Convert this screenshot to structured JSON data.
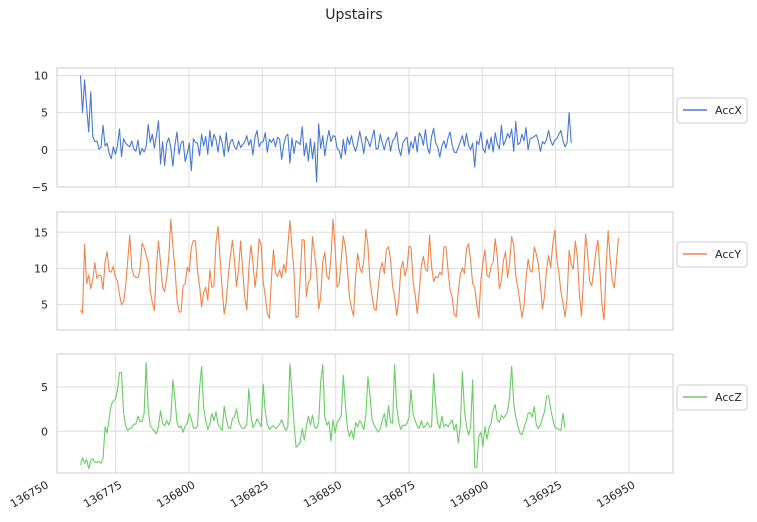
{
  "chart_data": {
    "type": "line",
    "title": "Upstairs",
    "x": {
      "start": 136763,
      "step": 0.7,
      "xlim": [
        136755,
        136965
      ],
      "ticks": [
        136750,
        136775,
        136800,
        136825,
        136850,
        136875,
        136900,
        136925,
        136950
      ],
      "tick_labels": [
        "136750",
        "136775",
        "136800",
        "136825",
        "136850",
        "136875",
        "136900",
        "136925",
        "136950"
      ]
    },
    "panels": [
      {
        "name": "AccX",
        "color": "#4878d0",
        "ylim": [
          -5,
          11
        ],
        "yticks": [
          -5,
          0,
          5,
          10
        ],
        "ytick_labels": [
          "−5",
          "0",
          "5",
          "10"
        ],
        "legend": "AccX",
        "values": [
          10.0,
          5.0,
          9.4,
          5.8,
          2.4,
          7.8,
          1.8,
          1.1,
          1.2,
          0.1,
          0.3,
          3.3,
          0.5,
          0.9,
          -0.5,
          -1.2,
          0.4,
          -0.6,
          0.5,
          2.8,
          -0.9,
          1.5,
          0.9,
          0.6,
          0.4,
          1.2,
          0.1,
          -0.2,
          1.3,
          -0.7,
          0.2,
          -0.3,
          0.4,
          3.4,
          1.0,
          2.1,
          0.2,
          1.9,
          3.9,
          -1.9,
          1.1,
          -2.1,
          0.9,
          1.6,
          0.3,
          -2.2,
          0.6,
          2.4,
          -0.6,
          0.9,
          1.2,
          -1.6,
          -0.5,
          0.9,
          -2.8,
          1.5,
          1.0,
          0.9,
          -0.8,
          2.1,
          0.5,
          1.8,
          -0.6,
          2.6,
          0.4,
          2.1,
          1.4,
          -0.3,
          1.9,
          1.0,
          -0.9,
          2.3,
          -0.3,
          1.1,
          1.4,
          0.4,
          0.1,
          1.2,
          0.3,
          0.7,
          1.1,
          1.9,
          0.6,
          1.4,
          -0.7,
          1.7,
          2.6,
          0.4,
          1.0,
          1.1,
          2.3,
          -0.3,
          1.4,
          1.0,
          1.5,
          0.4,
          1.7,
          1.4,
          -1.3,
          0.7,
          1.8,
          2.1,
          -1.8,
          1.6,
          -0.5,
          1.2,
          1.0,
          0.7,
          3.1,
          -0.8,
          0.9,
          -1.5,
          1.5,
          -1.2,
          1.0,
          -4.3,
          3.5,
          0.2,
          1.9,
          -0.8,
          1.2,
          2.6,
          1.1,
          1.9,
          1.8,
          0.2,
          -0.1,
          -1.2,
          1.4,
          -0.6,
          1.7,
          0.7,
          1.9,
          0.5,
          -0.2,
          0.9,
          2.5,
          1.1,
          -0.5,
          1.8,
          1.2,
          0.4,
          1.6,
          2.7,
          0.1,
          0.2,
          2.1,
          0.9,
          0.0,
          1.2,
          1.7,
          -0.2,
          1.2,
          1.5,
          2.4,
          0.2,
          -0.8,
          0.9,
          1.4,
          1.7,
          -0.6,
          1.1,
          0.2,
          1.8,
          -0.3,
          2.3,
          1.8,
          0.6,
          2.7,
          0.3,
          -0.5,
          1.8,
          2.9,
          0.9,
          0.4,
          -1.0,
          0.5,
          1.2,
          0.2,
          1.6,
          2.4,
          0.7,
          -0.3,
          -0.4,
          0.3,
          1.1,
          1.9,
          0.5,
          2.2,
          0.6,
          0.0,
          0.9,
          -2.3,
          1.2,
          0.7,
          2.4,
          0.2,
          -0.4,
          1.4,
          0.1,
          1.7,
          -0.3,
          2.3,
          0.8,
          0.1,
          3.3,
          0.6,
          1.2,
          2.2,
          1.6,
          2.8,
          -0.2,
          3.8,
          0.7,
          0.9,
          2.1,
          1.2,
          3.0,
          0.0,
          1.5,
          1.6,
          1.8,
          2.0,
          1.2,
          -0.2,
          1.1,
          0.8,
          1.4,
          2.6,
          1.2,
          0.6,
          1.3,
          1.5,
          2.1,
          2.6,
          1.2,
          0.4,
          1.0,
          5.0,
          0.9
        ]
      },
      {
        "name": "AccY",
        "color": "#ee854a",
        "ylim": [
          1.5,
          17.8
        ],
        "yticks": [
          5,
          10,
          15
        ],
        "ytick_labels": [
          "5",
          "10",
          "15"
        ],
        "legend": "AccY",
        "values": [
          4.3,
          3.8,
          13.3,
          7.9,
          9.1,
          7.2,
          8.5,
          10.8,
          8.6,
          9.1,
          9.0,
          7.1,
          10.9,
          12.3,
          9.6,
          9.5,
          10.3,
          8.8,
          8.3,
          6.4,
          5.0,
          5.4,
          7.6,
          11.0,
          14.6,
          10.0,
          9.0,
          8.8,
          8.7,
          9.8,
          13.5,
          12.9,
          11.8,
          10.8,
          6.9,
          5.3,
          4.2,
          10.1,
          13.8,
          10.7,
          7.4,
          6.8,
          8.7,
          11.5,
          16.8,
          13.2,
          10.1,
          5.8,
          4.0,
          4.0,
          7.6,
          7.9,
          10.2,
          9.5,
          12.9,
          13.9,
          13.8,
          9.7,
          7.6,
          4.7,
          6.7,
          7.4,
          5.6,
          9.8,
          7.4,
          7.6,
          13.6,
          15.8,
          11.3,
          7.1,
          3.7,
          5.4,
          9.0,
          11.7,
          13.9,
          11.1,
          7.5,
          9.9,
          13.8,
          9.8,
          6.1,
          4.3,
          9.9,
          13.2,
          10.9,
          7.4,
          9.8,
          14.1,
          13.2,
          8.1,
          6.2,
          3.8,
          3.1,
          8.6,
          12.6,
          9.3,
          8.9,
          9.8,
          8.7,
          10.6,
          9.4,
          13.1,
          16.6,
          13.0,
          9.5,
          3.2,
          3.4,
          8.9,
          14.0,
          13.9,
          6.1,
          8.0,
          8.6,
          14.4,
          12.0,
          9.8,
          4.4,
          6.0,
          10.9,
          12.2,
          9.0,
          8.5,
          11.6,
          16.8,
          13.0,
          7.4,
          7.9,
          11.2,
          14.5,
          13.0,
          9.9,
          6.1,
          4.5,
          3.4,
          8.8,
          12.1,
          10.2,
          9.4,
          11.1,
          15.4,
          13.2,
          8.3,
          6.2,
          4.5,
          4.2,
          7.4,
          9.9,
          10.8,
          9.3,
          12.6,
          13.0,
          11.3,
          7.6,
          6.1,
          3.5,
          5.6,
          9.9,
          11.0,
          9.0,
          10.0,
          13.1,
          12.9,
          8.3,
          6.4,
          3.8,
          6.8,
          10.3,
          11.7,
          9.9,
          9.6,
          14.6,
          10.3,
          8.2,
          8.9,
          8.7,
          9.5,
          9.1,
          13.0,
          13.0,
          9.8,
          7.1,
          6.0,
          3.7,
          3.3,
          6.8,
          9.2,
          10.1,
          9.3,
          12.7,
          13.4,
          11.1,
          7.9,
          7.4,
          5.0,
          3.2,
          8.3,
          10.8,
          12.6,
          9.0,
          8.8,
          10.3,
          10.9,
          14.1,
          11.6,
          7.2,
          8.3,
          11.1,
          12.3,
          8.7,
          10.8,
          14.4,
          13.2,
          9.0,
          7.3,
          5.4,
          3.2,
          4.8,
          8.5,
          11.3,
          9.7,
          9.5,
          13.0,
          12.0,
          10.6,
          7.6,
          4.4,
          6.2,
          9.9,
          11.8,
          10.1,
          13.3,
          15.3,
          11.3,
          9.4,
          6.8,
          5.2,
          3.3,
          6.0,
          12.5,
          10.6,
          9.9,
          13.8,
          11.6,
          6.4,
          3.4,
          8.7,
          14.7,
          12.0,
          8.2,
          7.6,
          9.8,
          12.3,
          13.9,
          9.6,
          4.9,
          2.9,
          10.2,
          15.2,
          11.3,
          8.3,
          7.3,
          10.8,
          14.2
        ]
      },
      {
        "name": "AccZ",
        "color": "#6acc64",
        "ylim": [
          -4.7,
          8.7
        ],
        "yticks": [
          0,
          5
        ],
        "ytick_labels": [
          "0",
          "5"
        ],
        "legend": "AccZ",
        "values": [
          -3.8,
          -3.0,
          -3.6,
          -3.2,
          -4.2,
          -3.3,
          -3.1,
          -3.5,
          -3.5,
          -3.4,
          -3.6,
          -3.0,
          0.5,
          -0.2,
          1.5,
          3.0,
          3.4,
          3.6,
          4.6,
          6.6,
          6.6,
          2.1,
          0.6,
          0.1,
          0.3,
          0.4,
          0.8,
          0.8,
          1.7,
          1.1,
          1.1,
          2.0,
          7.7,
          2.4,
          0.6,
          0.3,
          0.0,
          -0.3,
          0.6,
          2.3,
          0.9,
          0.6,
          1.2,
          0.7,
          1.4,
          5.8,
          3.7,
          1.0,
          0.4,
          0.6,
          -0.1,
          0.6,
          0.9,
          2.0,
          1.4,
          0.4,
          0.3,
          0.6,
          4.8,
          7.3,
          2.7,
          1.2,
          0.2,
          0.8,
          2.0,
          1.2,
          2.2,
          0.8,
          0.4,
          0.1,
          2.8,
          1.4,
          0.4,
          0.3,
          1.4,
          1.6,
          2.5,
          1.1,
          0.6,
          0.3,
          0.4,
          0.8,
          4.8,
          1.9,
          0.4,
          0.8,
          1.4,
          1.0,
          0.5,
          5.3,
          2.2,
          0.8,
          0.2,
          0.5,
          0.6,
          0.3,
          0.5,
          0.8,
          1.3,
          0.6,
          0.1,
          0.5,
          7.6,
          4.4,
          0.8,
          -1.8,
          -1.6,
          -1.2,
          0.3,
          -1.0,
          0.5,
          1.7,
          0.7,
          1.8,
          0.5,
          0.3,
          1.0,
          5.6,
          7.5,
          1.6,
          0.7,
          1.1,
          -1.1,
          1.3,
          -0.2,
          1.0,
          1.3,
          1.8,
          6.3,
          3.0,
          0.4,
          -0.6,
          0.1,
          -0.9,
          1.0,
          0.5,
          1.2,
          0.8,
          0.2,
          1.9,
          6.1,
          4.1,
          1.3,
          0.7,
          0.3,
          -0.1,
          0.3,
          1.3,
          2.0,
          0.5,
          2.9,
          1.0,
          0.9,
          7.5,
          2.8,
          1.0,
          0.2,
          0.7,
          0.6,
          0.9,
          1.5,
          4.7,
          1.9,
          1.2,
          0.6,
          0.3,
          1.2,
          0.4,
          0.6,
          1.0,
          0.5,
          0.5,
          6.5,
          3.0,
          0.9,
          0.3,
          1.7,
          0.5,
          0.8,
          0.5,
          0.9,
          1.3,
          0.1,
          0.8,
          -1.3,
          0.6,
          6.7,
          2.3,
          0.6,
          -0.4,
          0.4,
          5.8,
          -4.0,
          -4.1,
          -0.6,
          -0.1,
          -1.7,
          0.5,
          -0.9,
          0.4,
          0.9,
          2.4,
          3.0,
          1.3,
          1.0,
          1.8,
          1.5,
          1.8,
          2.2,
          3.9,
          7.3,
          3.1,
          1.6,
          0.6,
          -0.2,
          -0.4,
          0.4,
          1.1,
          2.0,
          2.1,
          1.6,
          2.8,
          0.7,
          0.3,
          0.7,
          1.5,
          2.2,
          3.9,
          4.0,
          2.5,
          1.4,
          0.5,
          0.3,
          0.2,
          0.1,
          2.0,
          0.4
        ]
      }
    ]
  }
}
